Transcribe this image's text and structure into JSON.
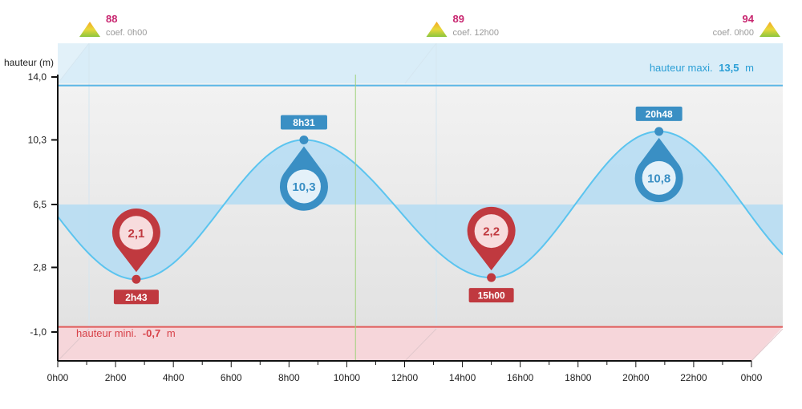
{
  "chart_data": {
    "type": "line",
    "ylabel": "hauteur (m)",
    "ylim": [
      -1.6,
      14.0
    ],
    "yticks": [
      "14,0",
      "10,3",
      "6,5",
      "2,8",
      "-1,0"
    ],
    "ytick_values": [
      14.0,
      10.3,
      6.5,
      2.8,
      -1.0
    ],
    "xlim": [
      0,
      24
    ],
    "xticks": [
      "0h00",
      "2h00",
      "4h00",
      "6h00",
      "8h00",
      "10h00",
      "12h00",
      "14h00",
      "16h00",
      "18h00",
      "20h00",
      "22h00",
      "0h00"
    ],
    "xtick_hours": [
      0,
      2,
      4,
      6,
      8,
      10,
      12,
      14,
      16,
      18,
      20,
      22,
      24
    ],
    "current_time_hour": 10.3,
    "mean_level": 6.5,
    "max_height": {
      "label": "hauteur maxi.",
      "value": "13,5",
      "unit": "m",
      "number": 13.5
    },
    "min_height": {
      "label": "hauteur mini.",
      "value": "-0,7",
      "unit": "m",
      "number": -0.7
    },
    "tides": [
      {
        "type": "low",
        "time": "2h43",
        "hour": 2.717,
        "height": 2.1,
        "height_label": "2,1"
      },
      {
        "type": "high",
        "time": "8h31",
        "hour": 8.517,
        "height": 10.3,
        "height_label": "10,3"
      },
      {
        "type": "low",
        "time": "15h00",
        "hour": 15.0,
        "height": 2.2,
        "height_label": "2,2"
      },
      {
        "type": "high",
        "time": "20h48",
        "hour": 20.8,
        "height": 10.8,
        "height_label": "10,8"
      }
    ],
    "coefficients": [
      {
        "value": "88",
        "label": "coef. 0h00",
        "hour": 0,
        "anchor": "start"
      },
      {
        "value": "89",
        "label": "coef. 12h00",
        "hour": 12,
        "anchor": "start"
      },
      {
        "value": "94",
        "label": "coef. 0h00",
        "hour": 24,
        "anchor": "end"
      }
    ],
    "colors": {
      "curve": "#5bc4ef",
      "fill": "#b7ddf3",
      "high_marker": "#3a8fc4",
      "low_marker": "#c0393f",
      "max_line": "#5ab6e6",
      "min_line": "#e05a5a",
      "now_line": "#9fd27a",
      "coef_text": "#c8256f"
    }
  }
}
